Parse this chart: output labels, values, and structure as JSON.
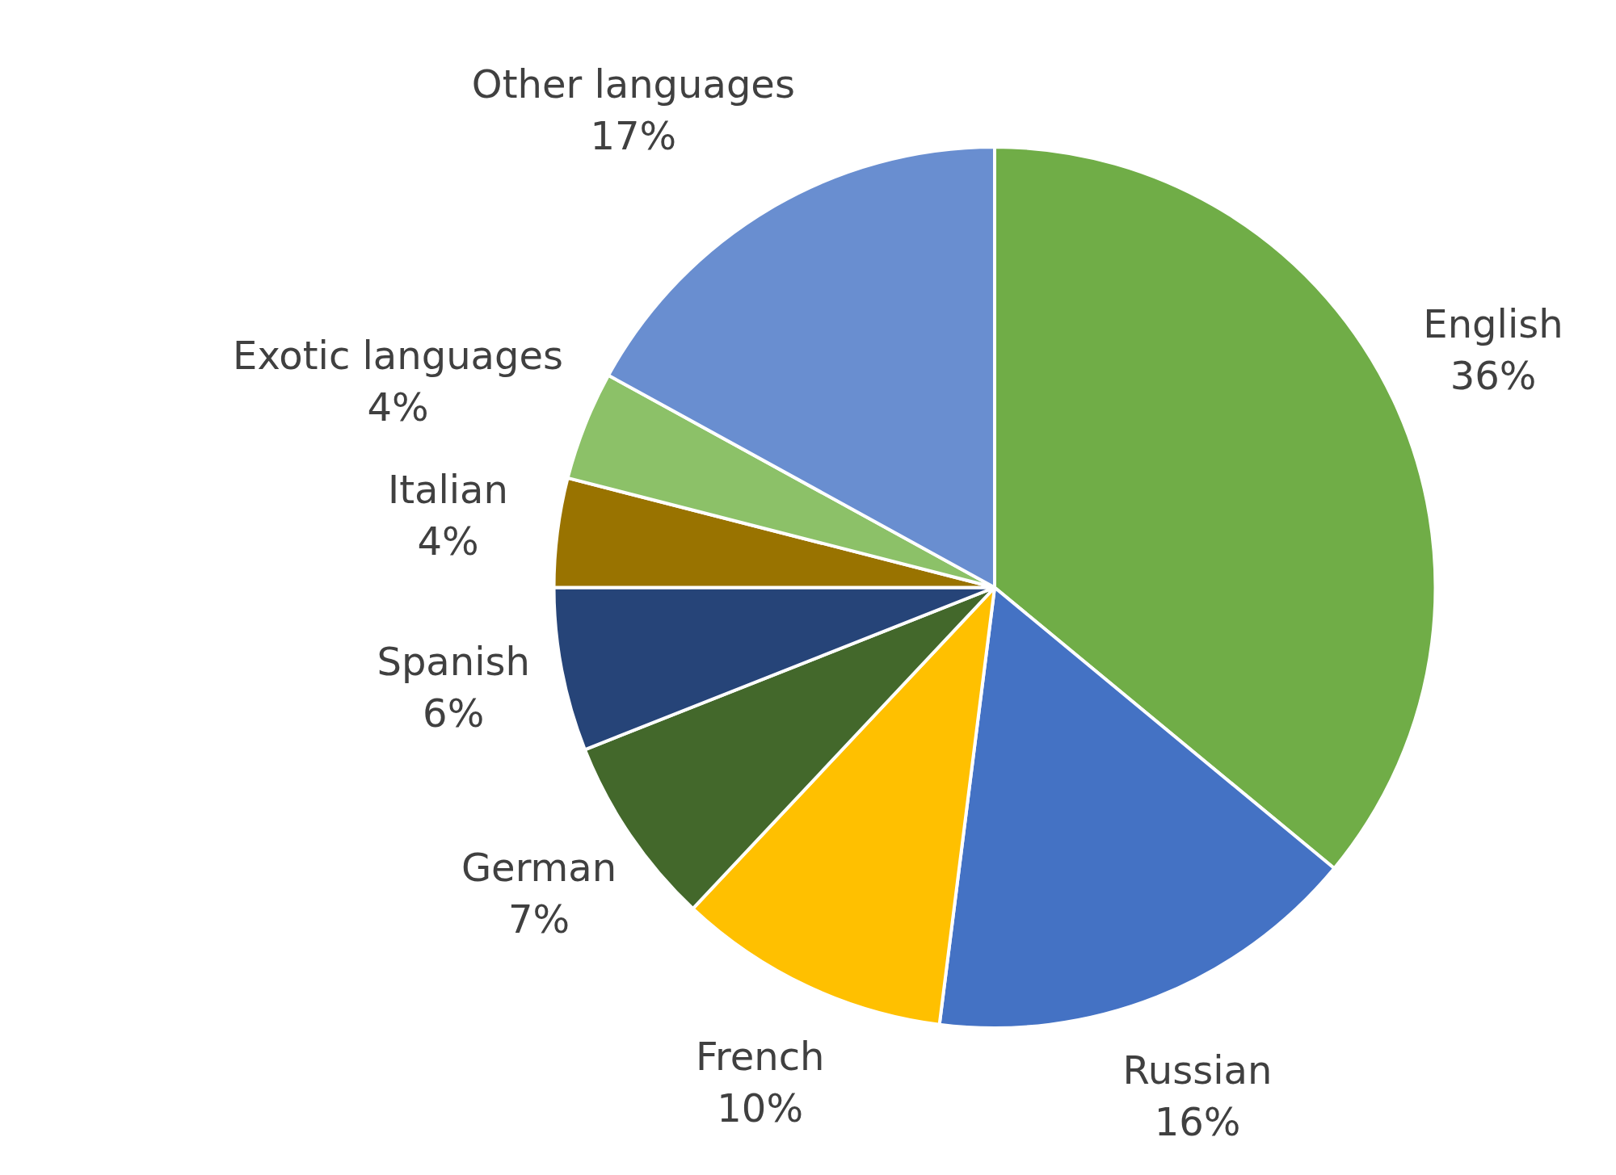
{
  "chart_data": {
    "type": "pie",
    "categories": [
      "English",
      "Russian",
      "French",
      "German",
      "Spanish",
      "Italian",
      "Exotic languages",
      "Other languages"
    ],
    "values": [
      36,
      16,
      10,
      7,
      6,
      4,
      4,
      17
    ],
    "value_labels": [
      "36%",
      "16%",
      "10%",
      "7%",
      "6%",
      "4%",
      "4%",
      "17%"
    ],
    "colors": [
      "#70ad47",
      "#4472c4",
      "#ffc000",
      "#43682b",
      "#264478",
      "#997300",
      "#8cc168",
      "#698ed0"
    ]
  }
}
